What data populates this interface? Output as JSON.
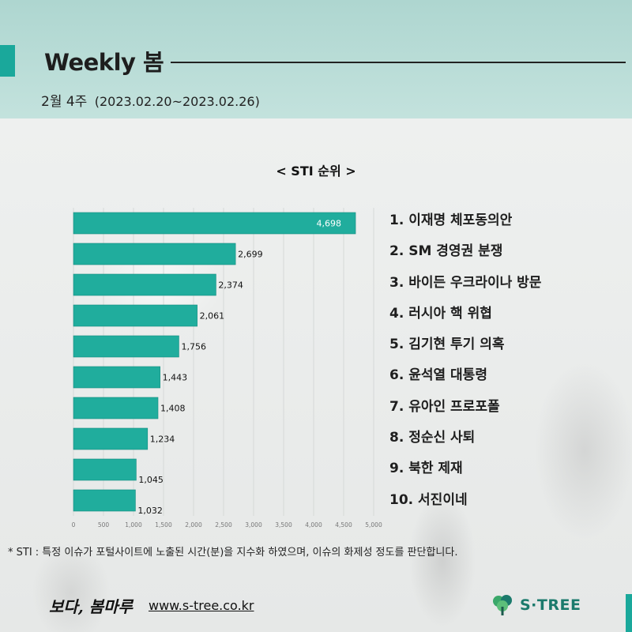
{
  "header": {
    "title": "Weekly 봄",
    "week": "2월 4주",
    "range": "(2023.02.20~2023.02.26)"
  },
  "chart_data": {
    "type": "bar",
    "orientation": "horizontal",
    "title": "< STI 순위 >",
    "categories": [
      "1. 이재명 체포동의안",
      "2. SM 경영권 분쟁",
      "3. 바이든 우크라이나 방문",
      "4. 러시아 핵 위협",
      "5. 김기현 투기 의혹",
      "6. 윤석열 대통령",
      "7. 유아인 프로포폴",
      "8. 정순신 사퇴",
      "9. 북한 제재",
      "10. 서진이네"
    ],
    "values": [
      4698,
      2699,
      2374,
      2061,
      1756,
      1443,
      1408,
      1234,
      1045,
      1032
    ],
    "value_labels": [
      "4,698",
      "2,699",
      "2,374",
      "2,061",
      "1,756",
      "1,443",
      "1,408",
      "1,234",
      "1,045",
      "1,032"
    ],
    "xlim": [
      0,
      5000
    ],
    "x_ticks": [
      0,
      500,
      1000,
      1500,
      2000,
      2500,
      3000,
      3500,
      4000,
      4500,
      5000
    ],
    "x_tick_labels": [
      "0",
      "500",
      "1,000",
      "1,500",
      "2,000",
      "2,500",
      "3,000",
      "3,500",
      "4,000",
      "4,500",
      "5,000"
    ],
    "grid": true,
    "bar_color": "#20ad9d"
  },
  "footnote": "* STI : 특정 이슈가 포털사이트에 노출된 시간(분)을 지수화 하였으며, 이슈의 화제성 정도를 판단합니다.",
  "footer": {
    "brand": "보다, 봄마루",
    "url": "www.s-tree.co.kr",
    "logo_text": "S·TREE",
    "logo_icon": "tree-icon"
  },
  "colors": {
    "accent": "#1aa89b",
    "header_bg": "#b5dad4"
  }
}
